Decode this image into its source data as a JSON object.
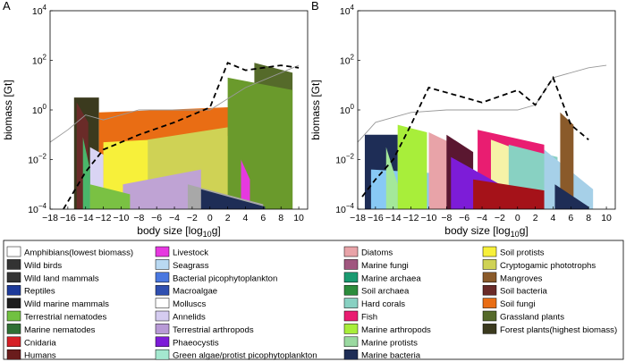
{
  "chart_data": [
    {
      "panel": "A",
      "type": "area",
      "xlabel": "body size [log10g]",
      "ylabel": "biomass [Gt]",
      "xlim": [
        -18,
        11
      ],
      "ylim": [
        -4,
        4
      ],
      "yscale": "log",
      "xticks": [
        -18,
        -16,
        -14,
        -12,
        -10,
        -8,
        -6,
        -4,
        -2,
        0,
        2,
        4,
        6,
        8,
        10
      ],
      "yticks": [
        "10^-4",
        "10^-2",
        "10^0",
        "10^2",
        "10^4"
      ],
      "series": [
        {
          "color": "#3b3a1e",
          "x": [
            -15.3,
            -12.5
          ],
          "log_biomass": [
            0.5,
            0.5
          ]
        },
        {
          "color": "#6a2b28",
          "x": [
            -15.0,
            -13.7
          ],
          "log_biomass": [
            0.3,
            -0.5
          ]
        },
        {
          "color": "#e96d14",
          "x": [
            -12.5,
            8.6
          ],
          "log_biomass": [
            -0.1,
            0.2
          ]
        },
        {
          "color": "#f7f03a",
          "x": [
            -12.0,
            4.5
          ],
          "log_biomass": [
            -1.3,
            -1.0
          ]
        },
        {
          "color": "#cfd255",
          "x": [
            -7.0,
            2.0
          ],
          "log_biomass": [
            -1.2,
            -0.7
          ]
        },
        {
          "color": "#bfa3d4",
          "x": [
            -9.8,
            -1.0
          ],
          "log_biomass": [
            -3.0,
            -2.4
          ]
        },
        {
          "color": "#d9d4f4",
          "x": [
            -13.5,
            -12.0
          ],
          "log_biomass": [
            -1.5,
            -1.8
          ]
        },
        {
          "color": "#4ab66a",
          "x": [
            -14.3,
            -13.5
          ],
          "log_biomass": [
            -1.1,
            -2.4
          ]
        },
        {
          "color": "#7ac143",
          "x": [
            -13.5,
            -9.0
          ],
          "log_biomass": [
            -3.0,
            -3.4
          ]
        },
        {
          "color": "#556a2a",
          "x": [
            5.0,
            9.3
          ],
          "log_biomass": [
            1.9,
            1.5
          ]
        },
        {
          "color": "#6a9a2c",
          "x": [
            2.0,
            9.3
          ],
          "log_biomass": [
            1.3,
            0.8
          ]
        },
        {
          "color": "#e639e0",
          "x": [
            3.5,
            4.5
          ],
          "log_biomass": [
            -2.0,
            -2.8
          ]
        },
        {
          "color": "#a8a8a8",
          "x": [
            -2.5,
            6.0
          ],
          "log_biomass": [
            -3.0,
            -3.8
          ]
        },
        {
          "color": "#1e2d56",
          "x": [
            -1.0,
            6.2
          ],
          "log_biomass": [
            -3.2,
            -3.9
          ]
        }
      ],
      "lines": [
        {
          "style": "solid",
          "color": "#999999",
          "x": [
            -18,
            -16,
            -14,
            -12,
            -8,
            -4,
            0,
            4,
            8,
            10
          ],
          "log_biomass": [
            -1.3,
            -0.8,
            -0.2,
            -0.4,
            0.0,
            0.0,
            0.0,
            0.9,
            1.5,
            1.8
          ]
        },
        {
          "style": "dashed",
          "color": "#000000",
          "x": [
            -16.5,
            -14,
            -12,
            -8,
            -4,
            0,
            2,
            4,
            8,
            10
          ],
          "log_biomass": [
            -4.0,
            -2.5,
            -1.6,
            -1.0,
            -0.5,
            0.1,
            1.9,
            1.6,
            1.8,
            1.7
          ]
        }
      ]
    },
    {
      "panel": "B",
      "type": "area",
      "xlabel": "body size [log10g]",
      "ylabel": "biomass [Gt]",
      "xlim": [
        -18,
        11
      ],
      "ylim": [
        -4,
        4
      ],
      "yscale": "log",
      "xticks": [
        -18,
        -16,
        -14,
        -12,
        -10,
        -8,
        -6,
        -4,
        -2,
        0,
        2,
        4,
        6,
        8,
        10
      ],
      "yticks": [
        "10^-4",
        "10^-2",
        "10^0",
        "10^2",
        "10^4"
      ],
      "series": [
        {
          "color": "#1e2d56",
          "x": [
            -17.2,
            -13.5
          ],
          "log_biomass": [
            -1.0,
            -1.0
          ]
        },
        {
          "color": "#88c9f5",
          "x": [
            -16.5,
            -7.0
          ],
          "log_biomass": [
            -2.4,
            -2.6
          ]
        },
        {
          "color": "#a4e89a",
          "x": [
            -14.8,
            -13.5
          ],
          "log_biomass": [
            -1.5,
            -3.0
          ]
        },
        {
          "color": "#a8ee3a",
          "x": [
            -13.5,
            -10.2
          ],
          "log_biomass": [
            -0.6,
            -0.9
          ]
        },
        {
          "color": "#e8a3a8",
          "x": [
            -10.0,
            -6.5
          ],
          "log_biomass": [
            -0.9,
            -1.5
          ]
        },
        {
          "color": "#5a1730",
          "x": [
            -8.0,
            -5.0
          ],
          "log_biomass": [
            -1.0,
            -1.7
          ]
        },
        {
          "color": "#e91d71",
          "x": [
            -4.5,
            3.0
          ],
          "log_biomass": [
            -0.8,
            -1.4
          ]
        },
        {
          "color": "#f6f2a7",
          "x": [
            -3.0,
            0.0
          ],
          "log_biomass": [
            -1.2,
            -1.6
          ]
        },
        {
          "color": "#7d1cd8",
          "x": [
            -7.5,
            0.5
          ],
          "log_biomass": [
            -1.9,
            -3.5
          ]
        },
        {
          "color": "#88d1c2",
          "x": [
            -1.0,
            4.5
          ],
          "log_biomass": [
            -1.4,
            -1.9
          ]
        },
        {
          "color": "#a51219",
          "x": [
            -5.0,
            4.0
          ],
          "log_biomass": [
            -2.8,
            -3.3
          ]
        },
        {
          "color": "#a6d0e8",
          "x": [
            3.0,
            8.5
          ],
          "log_biomass": [
            -1.6,
            -3.2
          ]
        },
        {
          "color": "#8a5a2a",
          "x": [
            4.8,
            6.3
          ],
          "log_biomass": [
            -0.1,
            -0.6
          ]
        },
        {
          "color": "#1e2d56",
          "x": [
            4.2,
            8.0
          ],
          "log_biomass": [
            -3.0,
            -3.9
          ]
        }
      ],
      "lines": [
        {
          "style": "solid",
          "color": "#999999",
          "x": [
            -18,
            -16,
            -14,
            -12,
            -8,
            -4,
            0,
            2,
            4,
            8,
            10
          ],
          "log_biomass": [
            -1.3,
            -0.5,
            -0.3,
            -0.1,
            0.0,
            0.0,
            0.0,
            0.2,
            1.3,
            1.7,
            1.8
          ]
        },
        {
          "style": "dashed",
          "color": "#000000",
          "x": [
            -17.5,
            -16,
            -14,
            -12,
            -10,
            -6,
            -4,
            0,
            2,
            4,
            6,
            8
          ],
          "log_biomass": [
            -3.5,
            -2.8,
            -2.0,
            -0.6,
            0.9,
            0.5,
            0.3,
            0.8,
            0.2,
            1.3,
            -0.6,
            -1.2
          ]
        }
      ]
    }
  ],
  "legend": {
    "columns": [
      [
        {
          "label": "Amphibians",
          "note": "(lowest biomass)",
          "color": "#ffffff",
          "icon": "frog-icon"
        },
        {
          "label": "Wild birds",
          "color": "#333333",
          "icon": "bird-icon"
        },
        {
          "label": "Wild land mammals",
          "color": "#333333",
          "icon": "mammal-icon"
        },
        {
          "label": "Reptiles",
          "color": "#1d3a9a",
          "icon": "lizard-icon"
        },
        {
          "label": "Wild marine mammals",
          "color": "#1d1d1d",
          "icon": "whale-icon"
        },
        {
          "label": "Terrestrial nematodes",
          "color": "#71c141",
          "icon": "worm-icon"
        },
        {
          "label": "Marine nematodes",
          "color": "#2f6f34",
          "icon": "worm-icon"
        },
        {
          "label": "Cnidaria",
          "color": "#d61f26",
          "icon": "jellyfish-icon"
        },
        {
          "label": "Humans",
          "color": "#6a1c1c",
          "icon": "person-icon"
        }
      ],
      [
        {
          "label": "Livestock",
          "color": "#e639e0",
          "icon": "cow-icon"
        },
        {
          "label": "Seagrass",
          "color": "#b9d9f2",
          "icon": "seagrass-icon"
        },
        {
          "label": "Bacterial picophytoplankton",
          "color": "#4a78e0",
          "icon": "bacteria-icon"
        },
        {
          "label": "Macroalgae",
          "color": "#2f4fb0",
          "icon": "algae-icon"
        },
        {
          "label": "Molluscs",
          "color": "#ffffff",
          "icon": "mollusc-icon"
        },
        {
          "label": "Annelids",
          "color": "#d5ccf0",
          "icon": "annelid-icon"
        },
        {
          "label": "Terrestrial arthropods",
          "color": "#b89ad6",
          "icon": "ant-icon"
        },
        {
          "label": "Phaeocystis",
          "color": "#7d1cd8",
          "icon": "colony-icon"
        },
        {
          "label": "Green algae/protist picophytoplankton",
          "color": "#a4e8cf",
          "icon": "algae-icon"
        }
      ],
      [
        {
          "label": "Diatoms",
          "color": "#e8a3a8",
          "icon": "diatom-icon"
        },
        {
          "label": "Marine fungi",
          "color": "#a0567f",
          "icon": "fungi-icon"
        },
        {
          "label": "Marine archaea",
          "color": "#1a9a70",
          "icon": "archaea-icon"
        },
        {
          "label": "Soil archaea",
          "color": "#2c8c3c",
          "icon": "archaea-icon"
        },
        {
          "label": "Hard corals",
          "color": "#88d1c2",
          "icon": "coral-icon"
        },
        {
          "label": "Fish",
          "color": "#e91d71",
          "icon": "fish-icon"
        },
        {
          "label": "Marine arthropods",
          "color": "#a8ee3a",
          "icon": "shrimp-icon"
        },
        {
          "label": "Marine protists",
          "color": "#9ad9a0",
          "icon": "protist-icon"
        },
        {
          "label": "Marine bacteria",
          "color": "#1e2d56",
          "icon": "bacteria-icon"
        }
      ],
      [
        {
          "label": "Soil protists",
          "color": "#f7f03a",
          "icon": "star-protist-icon"
        },
        {
          "label": "Cryptogamic phototrophs",
          "color": "#cfd255",
          "icon": "moss-icon"
        },
        {
          "label": "Mangroves",
          "color": "#8a5a2a",
          "icon": "tree-icon"
        },
        {
          "label": "Soil bacteria",
          "color": "#6a2b28",
          "icon": "bacteria-icon"
        },
        {
          "label": "Soil fungi",
          "color": "#e96d14",
          "icon": "mushroom-icon"
        },
        {
          "label": "Grassland plants",
          "color": "#556a2a",
          "icon": "grass-icon"
        },
        {
          "label": "Forest plants",
          "note": "(highest biomass)",
          "color": "#3b3a1e",
          "icon": "tree-icon"
        }
      ]
    ]
  }
}
